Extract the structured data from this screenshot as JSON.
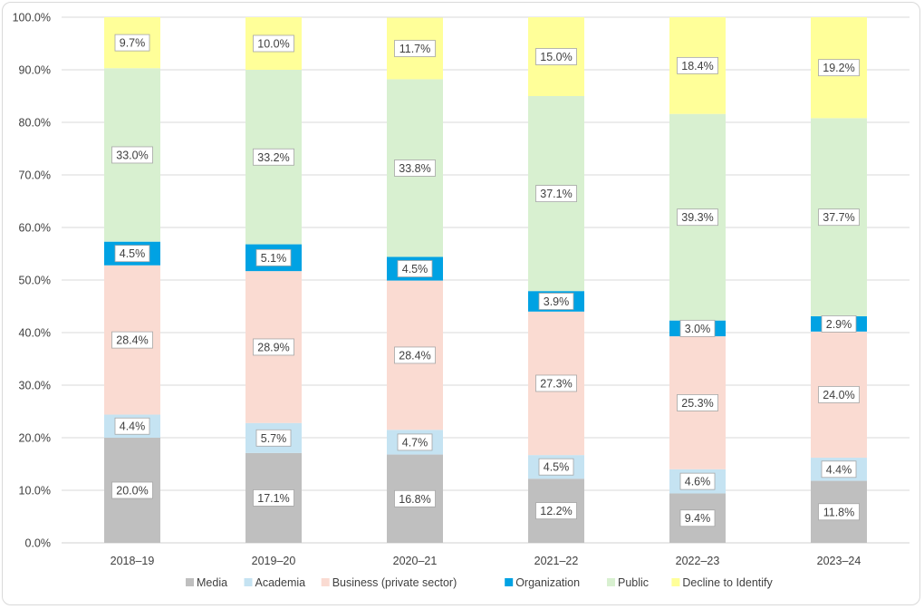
{
  "chart_data": {
    "type": "bar",
    "stacked": true,
    "title": "",
    "xlabel": "",
    "ylabel": "",
    "ylim": [
      0,
      100
    ],
    "y_ticks": [
      "0.0%",
      "10.0%",
      "20.0%",
      "30.0%",
      "40.0%",
      "50.0%",
      "60.0%",
      "70.0%",
      "80.0%",
      "90.0%",
      "100.0%"
    ],
    "grid": true,
    "legend_position": "bottom",
    "categories": [
      "2018–19",
      "2019–20",
      "2020–21",
      "2021–22",
      "2022–23",
      "2023–24"
    ],
    "series": [
      {
        "name": "Media",
        "color": "#bfbfbf",
        "values": [
          20.0,
          17.1,
          16.8,
          12.2,
          9.4,
          11.8
        ],
        "labels": [
          "20.0%",
          "17.1%",
          "16.8%",
          "12.2%",
          "9.4%",
          "11.8%"
        ]
      },
      {
        "name": "Academia",
        "color": "#c5e3f2",
        "values": [
          4.4,
          5.7,
          4.7,
          4.5,
          4.6,
          4.4
        ],
        "labels": [
          "4.4%",
          "5.7%",
          "4.7%",
          "4.5%",
          "4.6%",
          "4.4%"
        ]
      },
      {
        "name": "Business (private sector)",
        "color": "#fadbd2",
        "values": [
          28.4,
          28.9,
          28.4,
          27.3,
          25.3,
          24.0
        ],
        "labels": [
          "28.4%",
          "28.9%",
          "28.4%",
          "27.3%",
          "25.3%",
          "24.0%"
        ]
      },
      {
        "name": "Organization",
        "color": "#00a2e3",
        "values": [
          4.5,
          5.1,
          4.5,
          3.9,
          3.0,
          2.9
        ],
        "labels": [
          "4.5%",
          "5.1%",
          "4.5%",
          "3.9%",
          "3.0%",
          "2.9%"
        ]
      },
      {
        "name": "Public",
        "color": "#d8f0d0",
        "values": [
          33.0,
          33.2,
          33.8,
          37.1,
          39.3,
          37.7
        ],
        "labels": [
          "33.0%",
          "33.2%",
          "33.8%",
          "37.1%",
          "39.3%",
          "37.7%"
        ]
      },
      {
        "name": "Decline to Identify",
        "color": "#ffff99",
        "values": [
          9.7,
          10.0,
          11.7,
          15.0,
          18.4,
          19.2
        ],
        "labels": [
          "9.7%",
          "10.0%",
          "11.7%",
          "15.0%",
          "18.4%",
          "19.2%"
        ]
      }
    ]
  }
}
